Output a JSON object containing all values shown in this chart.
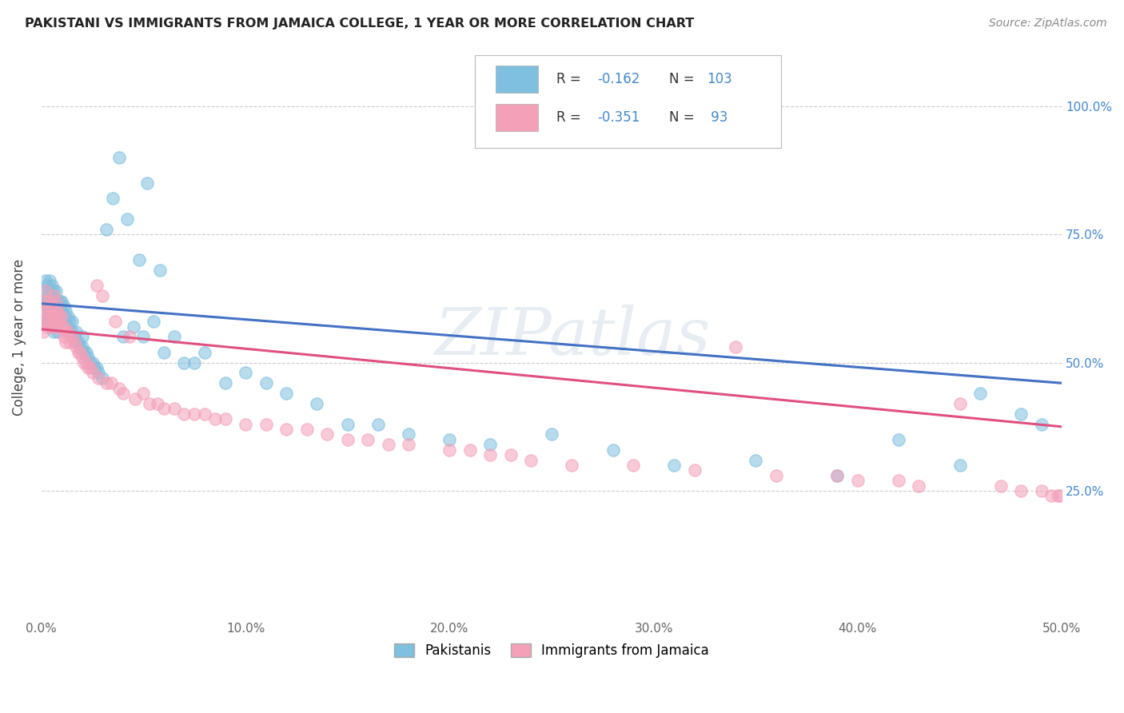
{
  "title": "PAKISTANI VS IMMIGRANTS FROM JAMAICA COLLEGE, 1 YEAR OR MORE CORRELATION CHART",
  "source": "Source: ZipAtlas.com",
  "xlabel_ticks": [
    "0.0%",
    "10.0%",
    "20.0%",
    "30.0%",
    "40.0%",
    "50.0%"
  ],
  "xlabel_vals": [
    0.0,
    0.1,
    0.2,
    0.3,
    0.4,
    0.5
  ],
  "ylabel": "College, 1 year or more",
  "ylabel_ticks_right": [
    "25.0%",
    "50.0%",
    "75.0%",
    "100.0%"
  ],
  "ylabel_vals_right": [
    0.25,
    0.5,
    0.75,
    1.0
  ],
  "xlim": [
    0.0,
    0.5
  ],
  "ylim": [
    0.0,
    1.1
  ],
  "blue_R": -0.162,
  "blue_N": 103,
  "pink_R": -0.351,
  "pink_N": 93,
  "blue_color": "#7fbfdf",
  "pink_color": "#f4a0b8",
  "blue_line_color": "#4472c4",
  "pink_line_color": "#e05080",
  "dashed_line_color": "#7fbfdf",
  "watermark": "ZIPatlas",
  "legend_label_blue": "Pakistanis",
  "legend_label_pink": "Immigrants from Jamaica",
  "blue_line_x0": 0.0,
  "blue_line_y0": 0.615,
  "blue_line_x1": 0.5,
  "blue_line_y1": 0.46,
  "pink_line_x0": 0.0,
  "pink_line_y0": 0.565,
  "pink_line_x1": 0.5,
  "pink_line_y1": 0.375,
  "blue_scatter_x": [
    0.001,
    0.001,
    0.002,
    0.002,
    0.002,
    0.003,
    0.003,
    0.003,
    0.003,
    0.003,
    0.004,
    0.004,
    0.004,
    0.004,
    0.004,
    0.005,
    0.005,
    0.005,
    0.005,
    0.005,
    0.005,
    0.006,
    0.006,
    0.006,
    0.006,
    0.006,
    0.007,
    0.007,
    0.007,
    0.007,
    0.008,
    0.008,
    0.008,
    0.008,
    0.009,
    0.009,
    0.009,
    0.01,
    0.01,
    0.01,
    0.011,
    0.011,
    0.011,
    0.012,
    0.012,
    0.013,
    0.013,
    0.014,
    0.014,
    0.015,
    0.015,
    0.016,
    0.017,
    0.017,
    0.018,
    0.019,
    0.02,
    0.02,
    0.021,
    0.022,
    0.023,
    0.024,
    0.025,
    0.026,
    0.027,
    0.028,
    0.03,
    0.032,
    0.035,
    0.038,
    0.04,
    0.042,
    0.045,
    0.048,
    0.05,
    0.052,
    0.055,
    0.058,
    0.06,
    0.065,
    0.07,
    0.075,
    0.08,
    0.09,
    0.1,
    0.11,
    0.12,
    0.135,
    0.15,
    0.165,
    0.18,
    0.2,
    0.22,
    0.25,
    0.28,
    0.31,
    0.35,
    0.39,
    0.42,
    0.45,
    0.46,
    0.48,
    0.49
  ],
  "blue_scatter_y": [
    0.62,
    0.58,
    0.64,
    0.6,
    0.66,
    0.61,
    0.63,
    0.58,
    0.65,
    0.62,
    0.6,
    0.64,
    0.58,
    0.62,
    0.66,
    0.59,
    0.61,
    0.63,
    0.57,
    0.65,
    0.6,
    0.58,
    0.62,
    0.64,
    0.6,
    0.56,
    0.62,
    0.6,
    0.58,
    0.64,
    0.58,
    0.6,
    0.62,
    0.56,
    0.6,
    0.58,
    0.62,
    0.58,
    0.6,
    0.62,
    0.57,
    0.59,
    0.61,
    0.58,
    0.6,
    0.57,
    0.59,
    0.56,
    0.58,
    0.56,
    0.58,
    0.55,
    0.56,
    0.54,
    0.54,
    0.53,
    0.55,
    0.53,
    0.52,
    0.52,
    0.51,
    0.5,
    0.5,
    0.49,
    0.49,
    0.48,
    0.47,
    0.76,
    0.82,
    0.9,
    0.55,
    0.78,
    0.57,
    0.7,
    0.55,
    0.85,
    0.58,
    0.68,
    0.52,
    0.55,
    0.5,
    0.5,
    0.52,
    0.46,
    0.48,
    0.46,
    0.44,
    0.42,
    0.38,
    0.38,
    0.36,
    0.35,
    0.34,
    0.36,
    0.33,
    0.3,
    0.31,
    0.28,
    0.35,
    0.3,
    0.44,
    0.4,
    0.38
  ],
  "pink_scatter_x": [
    0.001,
    0.001,
    0.002,
    0.002,
    0.002,
    0.003,
    0.003,
    0.003,
    0.004,
    0.004,
    0.004,
    0.005,
    0.005,
    0.005,
    0.006,
    0.006,
    0.006,
    0.007,
    0.007,
    0.007,
    0.008,
    0.008,
    0.009,
    0.009,
    0.01,
    0.01,
    0.011,
    0.011,
    0.012,
    0.012,
    0.013,
    0.014,
    0.015,
    0.016,
    0.017,
    0.018,
    0.019,
    0.02,
    0.021,
    0.022,
    0.023,
    0.024,
    0.025,
    0.027,
    0.028,
    0.03,
    0.032,
    0.034,
    0.036,
    0.038,
    0.04,
    0.043,
    0.046,
    0.05,
    0.053,
    0.057,
    0.06,
    0.065,
    0.07,
    0.075,
    0.08,
    0.085,
    0.09,
    0.1,
    0.11,
    0.12,
    0.13,
    0.14,
    0.15,
    0.16,
    0.17,
    0.18,
    0.2,
    0.21,
    0.22,
    0.23,
    0.24,
    0.26,
    0.29,
    0.32,
    0.34,
    0.36,
    0.39,
    0.4,
    0.42,
    0.43,
    0.45,
    0.47,
    0.48,
    0.49,
    0.495,
    0.498,
    0.499
  ],
  "pink_scatter_y": [
    0.6,
    0.56,
    0.62,
    0.58,
    0.64,
    0.59,
    0.61,
    0.57,
    0.6,
    0.62,
    0.58,
    0.59,
    0.61,
    0.57,
    0.59,
    0.63,
    0.57,
    0.6,
    0.58,
    0.62,
    0.58,
    0.6,
    0.57,
    0.59,
    0.57,
    0.59,
    0.57,
    0.55,
    0.56,
    0.54,
    0.56,
    0.54,
    0.55,
    0.54,
    0.53,
    0.52,
    0.52,
    0.51,
    0.5,
    0.5,
    0.49,
    0.49,
    0.48,
    0.65,
    0.47,
    0.63,
    0.46,
    0.46,
    0.58,
    0.45,
    0.44,
    0.55,
    0.43,
    0.44,
    0.42,
    0.42,
    0.41,
    0.41,
    0.4,
    0.4,
    0.4,
    0.39,
    0.39,
    0.38,
    0.38,
    0.37,
    0.37,
    0.36,
    0.35,
    0.35,
    0.34,
    0.34,
    0.33,
    0.33,
    0.32,
    0.32,
    0.31,
    0.3,
    0.3,
    0.29,
    0.53,
    0.28,
    0.28,
    0.27,
    0.27,
    0.26,
    0.42,
    0.26,
    0.25,
    0.25,
    0.24,
    0.24,
    0.24
  ]
}
